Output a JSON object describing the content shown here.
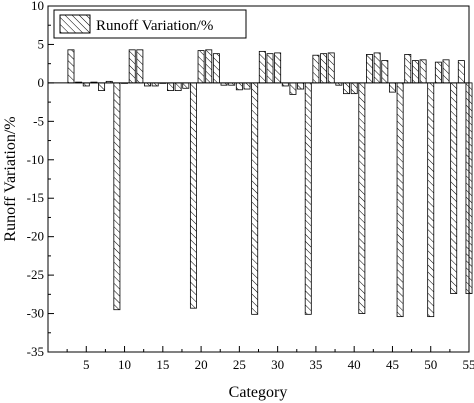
{
  "chart_data": {
    "type": "bar",
    "xlabel": "Category",
    "ylabel": "Runoff Variation/%",
    "xlim": [
      0,
      55
    ],
    "ylim": [
      -35,
      10
    ],
    "xticks": [
      5,
      10,
      15,
      20,
      25,
      30,
      35,
      40,
      45,
      50,
      55
    ],
    "yticks": [
      10,
      5,
      0,
      -5,
      -10,
      -15,
      -20,
      -25,
      -30,
      -35
    ],
    "grid": false,
    "legend_position": "top-left",
    "series": [
      {
        "name": "Runoff Variation/%",
        "fill_pattern": "diagonal-hatch",
        "x": [
          3,
          4,
          5,
          6,
          7,
          8,
          9,
          10,
          11,
          12,
          13,
          14,
          15,
          16,
          17,
          18,
          19,
          20,
          21,
          22,
          23,
          24,
          25,
          26,
          27,
          28,
          29,
          30,
          31,
          32,
          33,
          34,
          35,
          36,
          37,
          38,
          39,
          40,
          41,
          42,
          43,
          44,
          45,
          46,
          47,
          48,
          49,
          50,
          51,
          52,
          53,
          54,
          55
        ],
        "values": [
          4.3,
          0.1,
          -0.4,
          0.1,
          -1.0,
          0.2,
          -29.5,
          0.0,
          4.3,
          4.3,
          -0.4,
          -0.4,
          0.0,
          -1.0,
          -1.0,
          -0.7,
          -29.3,
          4.2,
          4.3,
          3.8,
          -0.3,
          -0.3,
          -0.9,
          -0.8,
          -30.1,
          4.1,
          3.8,
          3.9,
          -0.4,
          -1.5,
          -0.8,
          -30.1,
          3.6,
          3.8,
          3.9,
          -0.3,
          -1.4,
          -1.4,
          -30.0,
          3.7,
          3.9,
          2.9,
          -1.2,
          -30.4,
          3.7,
          2.9,
          3.0,
          -30.4,
          2.7,
          3.0,
          -27.4,
          2.9,
          -27.4
        ]
      }
    ]
  }
}
